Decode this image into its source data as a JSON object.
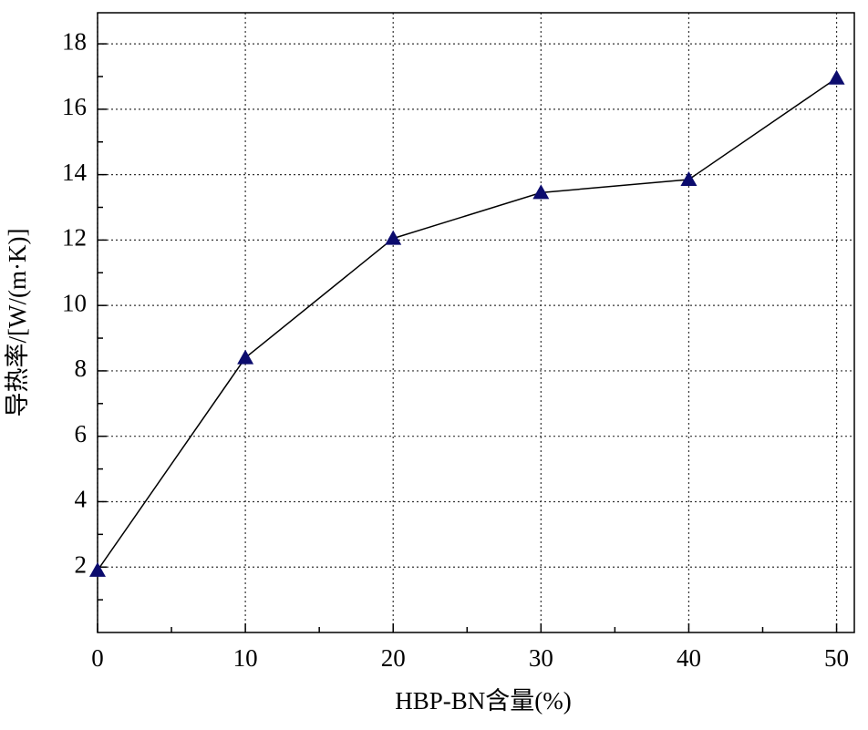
{
  "chart_data": {
    "type": "line",
    "xlabel": "HBP-BN含量(%)",
    "ylabel": "导热率/[W/(m·K)]",
    "x": [
      0,
      10,
      20,
      30,
      40,
      50
    ],
    "series": [
      {
        "color": "#0c0c6e",
        "values": [
          1.9,
          8.4,
          12.05,
          13.45,
          13.85,
          16.95
        ]
      }
    ],
    "xlim": [
      0,
      51.2
    ],
    "xticks": [
      0,
      10,
      20,
      30,
      40,
      50
    ],
    "xminor": [
      5,
      15,
      25,
      35,
      45
    ],
    "ylim": [
      0,
      18.95
    ],
    "yticks": [
      2,
      4,
      6,
      8,
      10,
      12,
      14,
      16,
      18
    ],
    "yminor": [
      1,
      3,
      5,
      7,
      9,
      11,
      13,
      15,
      17
    ],
    "grid": true
  }
}
